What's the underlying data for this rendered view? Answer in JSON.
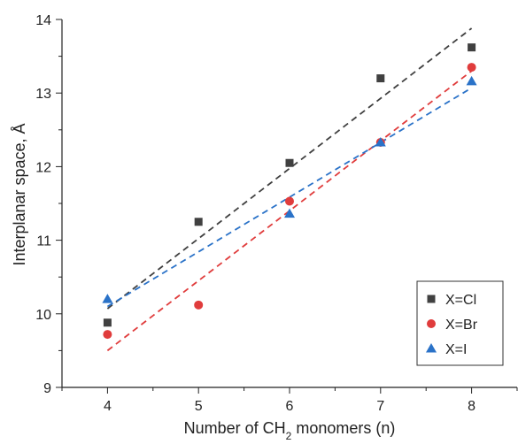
{
  "chart_data": {
    "type": "scatter",
    "title": "",
    "xlabel_parts": [
      "Number of CH",
      "2",
      " monomers (n)"
    ],
    "ylabel": "Interplanar space, Å",
    "xlim": [
      3.5,
      8.5
    ],
    "ylim": [
      9,
      14
    ],
    "x_ticks": [
      "4",
      "5",
      "6",
      "7",
      "8"
    ],
    "y_ticks": [
      "9",
      "10",
      "11",
      "12",
      "13",
      "14"
    ],
    "grid": false,
    "legend_position": "bottom-right",
    "series": [
      {
        "name": "X=Cl",
        "marker": "square",
        "color": "#404040",
        "x": [
          4,
          5,
          6,
          7,
          8
        ],
        "y": [
          9.88,
          11.25,
          12.05,
          13.2,
          13.62
        ],
        "fit": {
          "x": [
            4,
            8
          ],
          "y": [
            10.07,
            13.88
          ]
        }
      },
      {
        "name": "X=Br",
        "marker": "circle",
        "color": "#e03c3c",
        "x": [
          4,
          5,
          6,
          7,
          8
        ],
        "y": [
          9.72,
          10.12,
          11.53,
          12.33,
          13.35
        ],
        "fit": {
          "x": [
            4,
            8
          ],
          "y": [
            9.5,
            13.3
          ]
        }
      },
      {
        "name": "X=I",
        "marker": "triangle",
        "color": "#2a72c8",
        "x": [
          4,
          6,
          7,
          8
        ],
        "y": [
          10.2,
          11.36,
          12.33,
          13.16
        ],
        "fit": {
          "x": [
            4,
            8
          ],
          "y": [
            10.1,
            13.07
          ]
        }
      }
    ]
  }
}
